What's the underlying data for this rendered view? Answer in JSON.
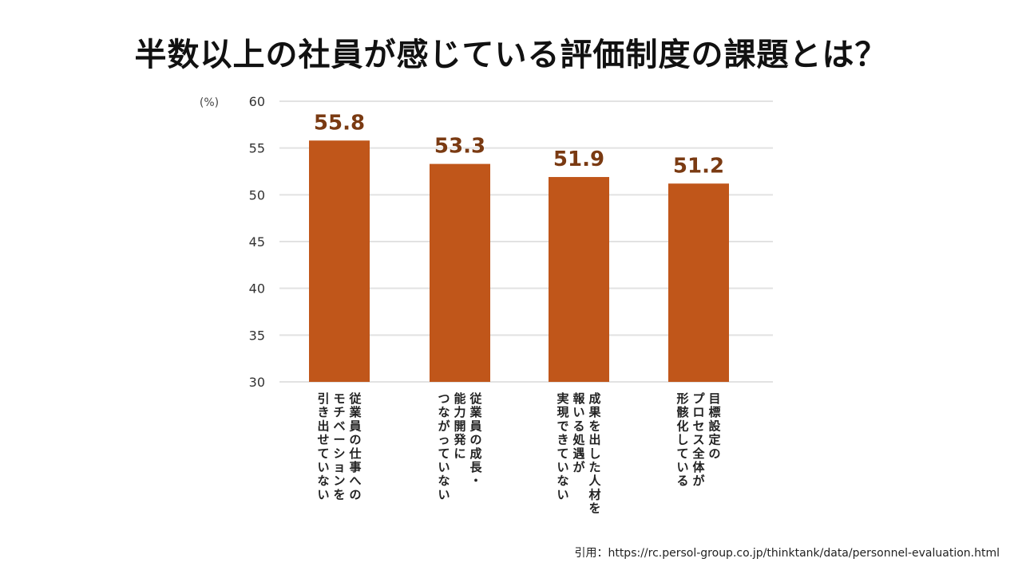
{
  "title": "半数以上の社員が感じている評価制度の課題とは？",
  "source": "引用：https://rc.persol-group.co.jp/thinktank/data/personnel-evaluation.html",
  "chart_data": {
    "type": "bar",
    "title": "半数以上の社員が感じている評価制度の課題とは？",
    "unit_label": "(%)",
    "ylim": [
      30,
      60
    ],
    "yticks": [
      30,
      35,
      40,
      45,
      50,
      55,
      60
    ],
    "grid": true,
    "bar_color": "#c0561a",
    "label_color": "#7a3a12",
    "categories": [
      [
        "従業員の仕事への",
        "モチベーションを",
        "引き出せていない"
      ],
      [
        "従業員の成長・",
        "能力開発に",
        "つながっていない"
      ],
      [
        "成果を出した人材を",
        "報いる処遇が",
        "実現できていない"
      ],
      [
        "目標設定の",
        "プロセス全体が",
        "形骸化している"
      ]
    ],
    "values": [
      55.8,
      53.3,
      51.9,
      51.2
    ],
    "value_labels": [
      "55.8",
      "53.3",
      "51.9",
      "51.2"
    ]
  }
}
